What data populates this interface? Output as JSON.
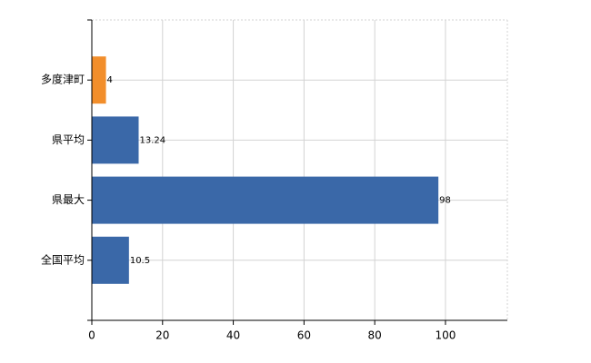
{
  "chart_data": {
    "type": "bar",
    "orientation": "horizontal",
    "categories": [
      "多度津町",
      "県平均",
      "県最大",
      "全国平均"
    ],
    "values": [
      4,
      13.24,
      98,
      10.5
    ],
    "colors": [
      "#f28e2b",
      "#3a68a8",
      "#3a68a8",
      "#3a68a8"
    ],
    "xlim": [
      0,
      117.5
    ],
    "xticks": [
      0,
      20,
      40,
      60,
      80,
      100
    ],
    "grid": true
  }
}
